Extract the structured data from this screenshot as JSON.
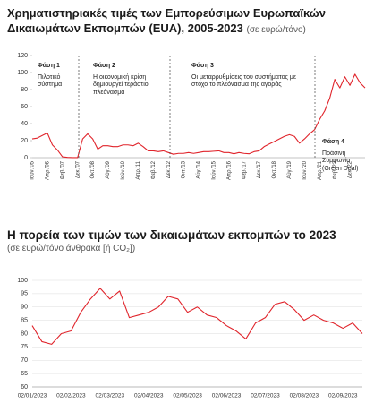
{
  "chart_data": [
    {
      "type": "line",
      "title": "Χρηματιστηριακές τιμές των Εμπορεύσιμων Ευρωπαϊκών Δικαιωμάτων Εκπομπών (EUA), 2005-2023",
      "subtitle": "(σε ευρώ/τόνο)",
      "categories": [
        "Ιουν.'05",
        null,
        null,
        "Απρ.'06",
        null,
        null,
        "Φεβ.'07",
        null,
        null,
        "Δεκ.'07",
        null,
        null,
        "Οκτ.'08",
        null,
        null,
        "Αύγ.'09",
        null,
        null,
        "Ιούν.'10",
        null,
        null,
        "Απρ.'11",
        null,
        null,
        "Φεβ.'12",
        null,
        null,
        "Δεκ.'12",
        null,
        null,
        "Οκτ.'13",
        null,
        null,
        "Αύγ.'14",
        null,
        null,
        "Ιούν.'15",
        null,
        null,
        "Απρ.'16",
        null,
        null,
        "Φεβ.'17",
        null,
        null,
        "Δεκ.'17",
        null,
        null,
        "Οκτ.'18",
        null,
        null,
        "Αύγ.'19",
        null,
        null,
        "Ιούν.'20",
        null,
        null,
        "Απρ.'21",
        null,
        null,
        "Φεβ.'22",
        null,
        null,
        "Δεκ.'22",
        null,
        null,
        null
      ],
      "values": [
        22,
        23,
        26,
        29,
        15,
        9,
        1,
        0.3,
        0.1,
        0.1,
        22,
        28,
        22,
        10,
        14,
        14,
        13,
        13,
        15,
        15,
        14,
        17,
        13,
        8,
        8,
        7,
        8,
        6,
        4,
        5,
        5,
        6,
        5,
        6,
        7,
        7,
        7.5,
        8,
        6,
        6,
        4.5,
        6,
        5,
        4.5,
        7,
        8,
        13,
        16,
        19,
        22,
        25,
        27,
        25,
        17,
        22,
        28,
        33,
        45,
        55,
        70,
        92,
        82,
        95,
        85,
        98,
        88,
        82
      ],
      "color": "#e0242b",
      "ylim": [
        0,
        120
      ],
      "yticks": [
        0,
        20,
        40,
        60,
        80,
        100,
        120
      ],
      "grid": false,
      "annotations": [
        {
          "label": "Φάση 1",
          "text": "Πιλοτικό σύστημα"
        },
        {
          "label": "Φάση 2",
          "text": "Η οικονομική κρίση δημιουργεί τεράστιο πλεόνασμα"
        },
        {
          "label": "Φάση 3",
          "text": "Οι μεταρρυθμίσεις του συστήματος με στόχο το πλεόνασμα της αγοράς"
        },
        {
          "label": "Φάση 4",
          "text": "Πράσινη Συμφωνία (Green Deal)"
        }
      ]
    },
    {
      "type": "line",
      "title": "Η πορεία των τιμών των δικαιωμάτων εκπομπών το 2023",
      "subtitle": "(σε ευρώ/τόνο άνθρακα [ή CO₂])",
      "categories": [
        "02/01/2023",
        null,
        null,
        null,
        "02/02/2023",
        null,
        null,
        null,
        "02/03/2023",
        null,
        null,
        null,
        "02/04/2023",
        null,
        null,
        null,
        "02/05/2023",
        null,
        null,
        null,
        "02/06/2023",
        null,
        null,
        null,
        "02/07/2023",
        null,
        null,
        null,
        "02/08/2023",
        null,
        null,
        null,
        "02/09/2023",
        null,
        null
      ],
      "values": [
        83,
        77,
        76,
        80,
        81,
        88,
        93,
        97,
        93,
        96,
        86,
        87,
        88,
        90,
        94,
        93,
        88,
        90,
        87,
        86,
        83,
        81,
        78,
        84,
        86,
        91,
        92,
        89,
        85,
        87,
        85,
        84,
        82,
        84,
        80
      ],
      "color": "#e0242b",
      "ylim": [
        60,
        100
      ],
      "yticks": [
        60,
        65,
        70,
        75,
        80,
        85,
        90,
        95,
        100
      ],
      "grid": true
    }
  ]
}
